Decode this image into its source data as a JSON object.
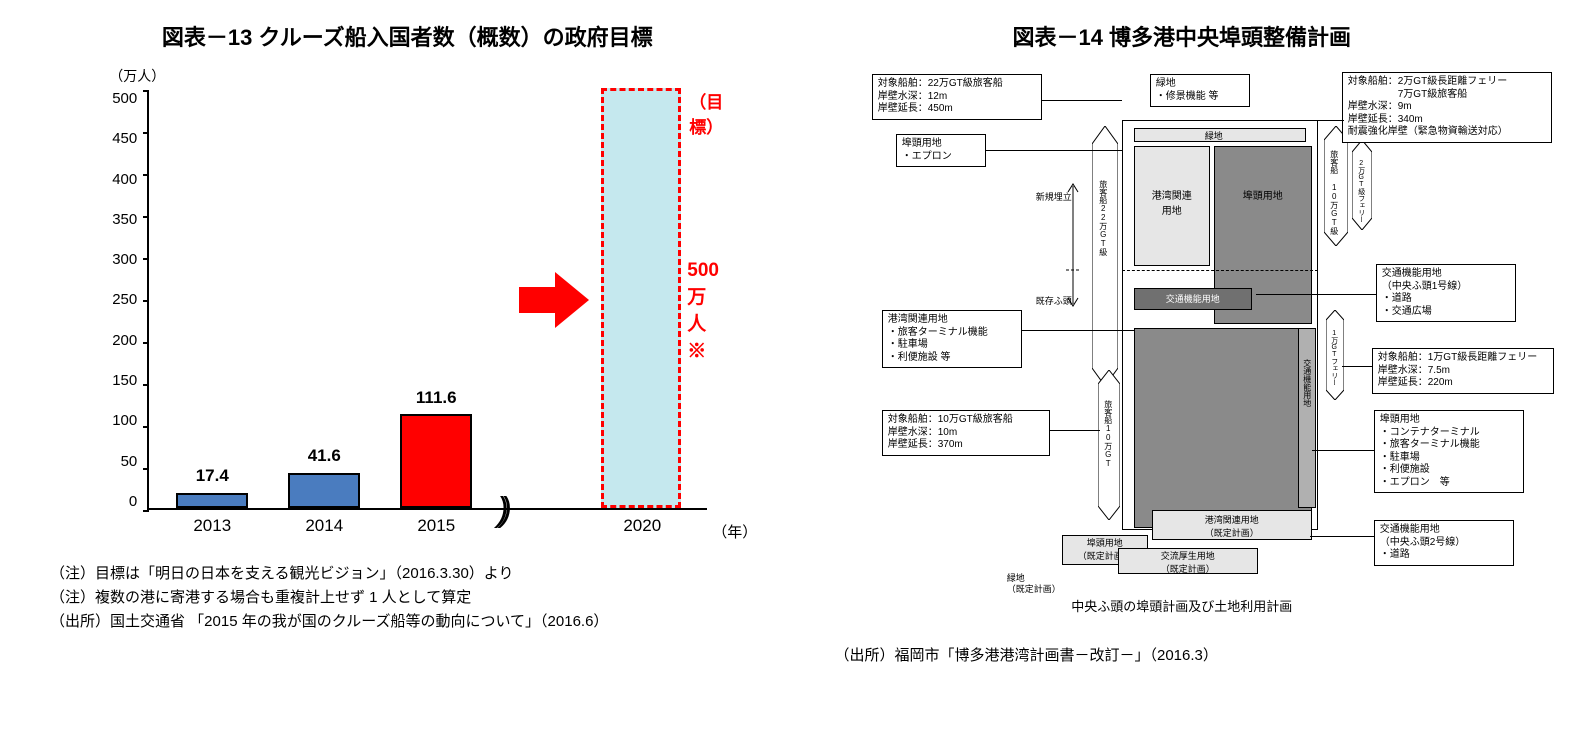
{
  "left": {
    "title": "図表－13  クルーズ船入国者数（概数）の政府目標",
    "chart": {
      "type": "bar",
      "y_unit": "（万人）",
      "x_unit": "（年）",
      "ylim": [
        0,
        500
      ],
      "ytick_step": 50,
      "yticks": [
        "500",
        "450",
        "400",
        "350",
        "300",
        "250",
        "200",
        "150",
        "100",
        "50",
        "0"
      ],
      "categories": [
        "2013",
        "2014",
        "2015",
        "2020"
      ],
      "values": [
        17.4,
        41.6,
        111.6,
        500
      ],
      "value_labels": [
        "17.4",
        "41.6",
        "111.6",
        "500万人※"
      ],
      "bar_colors": [
        "#4a7cbf",
        "#4a7cbf",
        "#ff0000",
        "#c5e8ee"
      ],
      "bar_border": "#000000",
      "target_top_label": "（目標）",
      "target_side_label": "500万人※",
      "arrow_color": "#ff0000",
      "background_color": "#ffffff"
    },
    "notes": [
      "（注）目標は「明日の日本を支える観光ビジョン」（2016.3.30）より",
      "（注）複数の港に寄港する場合も重複計上せず 1 人として算定",
      "（出所）国土交通省 「2015 年の我が国のクルーズ船等の動向について」（2016.6）"
    ]
  },
  "right": {
    "title": "図表－14  博多港中央埠頭整備計画",
    "diagram": {
      "type": "infographic",
      "boxes": {
        "b1": "対象船舶：22万GT級旅客船\n岸壁水深：12m\n岸壁延長：450m",
        "b2": "埠頭用地\n・エプロン",
        "b3": "港湾関連用地\n・旅客ターミナル機能\n・駐車場\n・利便施設 等",
        "b4": "対象船舶：10万GT級旅客船\n岸壁水深：10m\n岸壁延長：370m",
        "b5": "緑地\n・修景機能 等",
        "b6": "対象船舶：2万GT級長距離フェリー\n　　　　　7万GT級旅客船\n岸壁水深：9m\n岸壁延長：340m\n耐震強化岸壁（緊急物資輸送対応）",
        "b7": "交通機能用地\n（中央ふ頭1号線）\n・道路\n・交通広場",
        "b8": "対象船舶：1万GT級長距離フェリー\n岸壁水深：7.5m\n岸壁延長：220m",
        "b9": "埠頭用地\n・コンテナターミナル\n・旅客ターミナル機能\n・駐車場\n・利便施設\n・エプロン　等",
        "b10": "交通機能用地\n（中央ふ頭2号線）\n・道路"
      },
      "inner_labels": {
        "green": "緑地",
        "port_related": "港湾関連\n用地",
        "pier_land": "埠頭用地",
        "traffic": "交通機能用地",
        "new_fill": "新規埋立",
        "existing_pier": "既存ふ頭",
        "ship22": "旅客船22万GT級",
        "ship10_side": "旅客船10万GT",
        "ship10_r": "旅客船 10万GT級",
        "ferry2": "2万GT級フェリー",
        "ferry1": "1万GTフェリー",
        "traffic_land_r": "交通機能用地",
        "port_rel_planned": "港湾関連用地\n（既定計画）",
        "pier_planned_l": "埠頭用地\n（既定計画）",
        "green_planned": "緑地\n（既定計画）",
        "traffic_gen": "交流厚生用地\n（既定計画）"
      },
      "colors": {
        "light": "#e6e6e6",
        "med": "#b0b0b0",
        "dark": "#8a8a8a",
        "darker": "#707070",
        "line": "#000000",
        "bg": "#ffffff"
      },
      "caption": "中央ふ頭の埠頭計画及び土地利用計画"
    },
    "source": "（出所）福岡市「博多港港湾計画書－改訂－」（2016.3）"
  }
}
